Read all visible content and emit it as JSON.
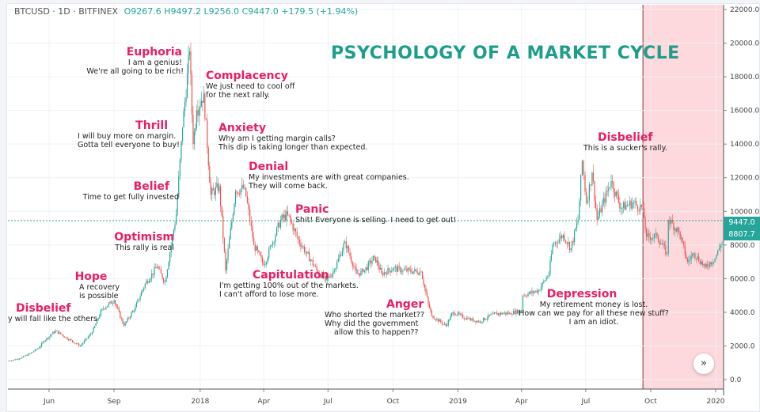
{
  "header": {
    "symbol": "BTCUSD · 1D · BITFINEX",
    "ohlc": "O9267.6 H9497.2 L9256.0 C9447.0 +179.5 (+1.94%)"
  },
  "title": "PSYCHOLOGY OF A MARKET CYCLE",
  "colors": {
    "up": "#26a69a",
    "down": "#ef5350",
    "accent": "#e91e63",
    "title": "#1e9e8a",
    "highlight": "#fdd8dc",
    "highlight_border": "#8b2f3a"
  },
  "annotations": [
    {
      "heading": "Disbelief",
      "lines": [
        "y will fall like the others"
      ]
    },
    {
      "heading": "Hope",
      "lines": [
        "A recovery",
        "is possible"
      ]
    },
    {
      "heading": "Optimism",
      "lines": [
        "This rally is real"
      ]
    },
    {
      "heading": "Belief",
      "lines": [
        "Time to get fully invested"
      ]
    },
    {
      "heading": "Thrill",
      "lines": [
        "I will buy more on margin.",
        "Gotta tell everyone to buy!"
      ]
    },
    {
      "heading": "Euphoria",
      "lines": [
        "I am a genius!",
        "We're all going to be rich!"
      ]
    },
    {
      "heading": "Complacency",
      "lines": [
        "We just need to cool off",
        "for the next rally."
      ]
    },
    {
      "heading": "Anxiety",
      "lines": [
        "Why am I getting margin calls?",
        "This dip is taking longer than expected."
      ]
    },
    {
      "heading": "Denial",
      "lines": [
        "My investments are with great companies.",
        "They will come back."
      ]
    },
    {
      "heading": "Panic",
      "lines": [
        "Shit! Everyone is selling. I need to get out!"
      ]
    },
    {
      "heading": "Capitulation",
      "lines": [
        "I'm getting 100% out of the markets.",
        "I can't afford to lose more."
      ]
    },
    {
      "heading": "Anger",
      "lines": [
        "Who shorted the market??",
        "Why did the government",
        "allow this to happen??"
      ]
    },
    {
      "heading": "Depression",
      "lines": [
        "My retirement money is lost.",
        "How can we pay for all these new stuff?",
        "I am an idiot."
      ]
    },
    {
      "heading": "Disbelief",
      "lines": [
        "This is a sucker's rally."
      ]
    }
  ],
  "price_labels": {
    "last": "9447.0",
    "other": "8807.7"
  },
  "scroll_button": "»",
  "chart_data": {
    "type": "candlestick",
    "title": "PSYCHOLOGY OF A MARKET CYCLE",
    "ylim": [
      0,
      22000
    ],
    "y_ticks": [
      "0.0",
      "2000.0",
      "4000.0",
      "6000.0",
      "8000.0",
      "10000.0",
      "12000.0",
      "14000.0",
      "16000.0",
      "18000.0",
      "20000.0",
      "22000.0"
    ],
    "x_ticks": [
      {
        "label": "Jun",
        "date": "2017-06-01"
      },
      {
        "label": "Sep",
        "date": "2017-09-01"
      },
      {
        "label": "2018",
        "date": "2018-01-01"
      },
      {
        "label": "Apr",
        "date": "2018-04-01"
      },
      {
        "label": "Jul",
        "date": "2018-07-01"
      },
      {
        "label": "Oct",
        "date": "2018-10-01"
      },
      {
        "label": "2019",
        "date": "2019-01-01"
      },
      {
        "label": "Apr",
        "date": "2019-04-01"
      },
      {
        "label": "Jul",
        "date": "2019-07-01"
      },
      {
        "label": "Oct",
        "date": "2019-10-01"
      },
      {
        "label": "2020",
        "date": "2020-01-01"
      }
    ],
    "grid": true,
    "highlight_range": [
      "2019-09-20",
      "2020-01-12"
    ],
    "last_price": 9447.0,
    "series": [
      [
        "2017-04-03",
        1100
      ],
      [
        "2017-04-20",
        1250
      ],
      [
        "2017-05-05",
        1550
      ],
      [
        "2017-05-18",
        1900
      ],
      [
        "2017-05-25",
        2300
      ],
      [
        "2017-06-10",
        2900
      ],
      [
        "2017-06-25",
        2500
      ],
      [
        "2017-07-15",
        2000
      ],
      [
        "2017-08-01",
        2800
      ],
      [
        "2017-08-15",
        4200
      ],
      [
        "2017-09-01",
        4700
      ],
      [
        "2017-09-15",
        3200
      ],
      [
        "2017-10-01",
        4300
      ],
      [
        "2017-10-15",
        5700
      ],
      [
        "2017-11-01",
        6700
      ],
      [
        "2017-11-12",
        5800
      ],
      [
        "2017-11-28",
        9800
      ],
      [
        "2017-12-07",
        15000
      ],
      [
        "2017-12-17",
        19500
      ],
      [
        "2017-12-22",
        14000
      ],
      [
        "2017-12-27",
        16000
      ],
      [
        "2018-01-06",
        17000
      ],
      [
        "2018-01-16",
        11000
      ],
      [
        "2018-01-28",
        11500
      ],
      [
        "2018-02-06",
        6500
      ],
      [
        "2018-02-20",
        11200
      ],
      [
        "2018-03-05",
        11400
      ],
      [
        "2018-03-18",
        8000
      ],
      [
        "2018-04-01",
        6800
      ],
      [
        "2018-04-12",
        8000
      ],
      [
        "2018-04-25",
        9500
      ],
      [
        "2018-05-05",
        9800
      ],
      [
        "2018-05-20",
        8300
      ],
      [
        "2018-06-01",
        7500
      ],
      [
        "2018-06-15",
        6500
      ],
      [
        "2018-06-28",
        5900
      ],
      [
        "2018-07-10",
        6500
      ],
      [
        "2018-07-25",
        8200
      ],
      [
        "2018-08-10",
        6300
      ],
      [
        "2018-08-20",
        6400
      ],
      [
        "2018-09-05",
        7300
      ],
      [
        "2018-09-15",
        6300
      ],
      [
        "2018-10-01",
        6600
      ],
      [
        "2018-10-15",
        6500
      ],
      [
        "2018-11-10",
        6400
      ],
      [
        "2018-11-20",
        4500
      ],
      [
        "2018-11-25",
        3800
      ],
      [
        "2018-12-15",
        3200
      ],
      [
        "2018-12-25",
        4000
      ],
      [
        "2019-01-15",
        3600
      ],
      [
        "2019-02-01",
        3450
      ],
      [
        "2019-02-20",
        3900
      ],
      [
        "2019-03-15",
        3950
      ],
      [
        "2019-04-01",
        4100
      ],
      [
        "2019-04-03",
        5000
      ],
      [
        "2019-04-25",
        5300
      ],
      [
        "2019-05-10",
        6300
      ],
      [
        "2019-05-15",
        8000
      ],
      [
        "2019-05-30",
        8600
      ],
      [
        "2019-06-10",
        7800
      ],
      [
        "2019-06-20",
        9500
      ],
      [
        "2019-06-26",
        13000
      ],
      [
        "2019-07-02",
        10500
      ],
      [
        "2019-07-10",
        12300
      ],
      [
        "2019-07-17",
        9500
      ],
      [
        "2019-08-06",
        11800
      ],
      [
        "2019-08-20",
        10200
      ],
      [
        "2019-09-05",
        10500
      ],
      [
        "2019-09-20",
        10200
      ],
      [
        "2019-09-25",
        8500
      ],
      [
        "2019-10-10",
        8500
      ],
      [
        "2019-10-24",
        7500
      ],
      [
        "2019-10-26",
        9500
      ],
      [
        "2019-11-10",
        8800
      ],
      [
        "2019-11-22",
        7000
      ],
      [
        "2019-12-01",
        7500
      ],
      [
        "2019-12-17",
        6700
      ],
      [
        "2019-12-31",
        7200
      ],
      [
        "2020-01-08",
        8000
      ],
      [
        "2020-01-12",
        8100
      ]
    ]
  }
}
